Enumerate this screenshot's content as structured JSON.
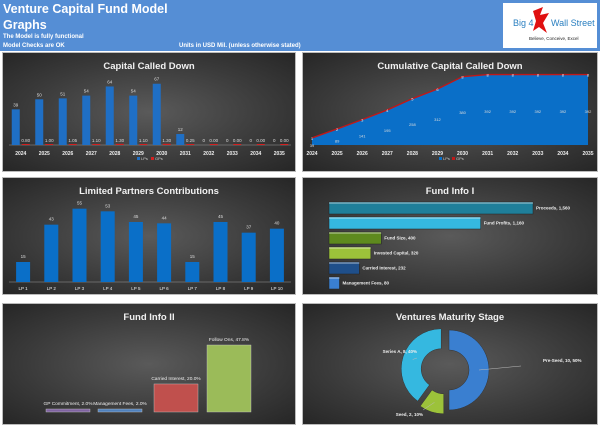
{
  "header": {
    "title": "Venture Capital Fund Model",
    "subtitle": "Graphs",
    "status_1": "The Model is fully functional",
    "status_2": "Model Checks are OK",
    "units": "Units in USD Mil. (unless otherwise stated)",
    "logo": {
      "left": "Big 4",
      "right": "Wall Street",
      "tagline": "Believe, Conceive, Excel",
      "icon": "red-eagle-icon"
    }
  },
  "colors": {
    "header": "#558ed5",
    "lp_blue": "#1f6fc5",
    "gp_red": "#d42020"
  },
  "chart_data": [
    {
      "type": "bar",
      "title": "Capital Called Down",
      "categories": [
        "2024",
        "2025",
        "2026",
        "2027",
        "2028",
        "2029",
        "2030",
        "2031",
        "2032",
        "2033",
        "2034",
        "2035"
      ],
      "series": [
        {
          "name": "LPs",
          "values": [
            39,
            50,
            51,
            54,
            64,
            54,
            67,
            12,
            0,
            0,
            0,
            0
          ],
          "labels": [
            "39",
            "50",
            "51",
            "54",
            "64",
            "54",
            "67",
            "12",
            "0",
            "0",
            "0",
            "0"
          ]
        },
        {
          "name": "GPs",
          "values": [
            0.8,
            1.0,
            1.05,
            1.1,
            1.3,
            1.1,
            1.3,
            0.25,
            0,
            0,
            0,
            0
          ],
          "labels": [
            "0.80",
            "1.00",
            "1.05",
            "1.10",
            "1.30",
            "1.10",
            "1.30",
            "0.25",
            "0.00",
            "0.00",
            "0.00",
            "0.00"
          ]
        }
      ],
      "legend": "bottom",
      "ylim": [
        0,
        70
      ]
    },
    {
      "type": "area",
      "title": "Cumulative Capital Called Down",
      "categories": [
        "2024",
        "2025",
        "2026",
        "2027",
        "2028",
        "2029",
        "2030",
        "2031",
        "2032",
        "2033",
        "2034",
        "2035"
      ],
      "series": [
        {
          "name": "LPs",
          "values": [
            39,
            89,
            141,
            195,
            258,
            312,
            380,
            392,
            392,
            392,
            392,
            392
          ]
        },
        {
          "name": "GPs",
          "values": [
            1,
            2,
            3,
            4,
            5,
            6,
            8,
            8,
            8,
            8,
            8,
            8
          ]
        }
      ],
      "stacked": true,
      "legend": "bottom",
      "ylim": [
        0,
        420
      ]
    },
    {
      "type": "bar",
      "title": "Limited Partners Contributions",
      "categories": [
        "LP 1",
        "LP 2",
        "LP 3",
        "LP 4",
        "LP 5",
        "LP 6",
        "LP 7",
        "LP 8",
        "LP 9",
        "LP 10"
      ],
      "values": [
        15,
        43,
        55,
        53,
        45,
        44,
        15,
        45,
        37,
        40
      ],
      "ylim": [
        0,
        60
      ]
    },
    {
      "type": "bar",
      "orientation": "horizontal",
      "title": "Fund Info I",
      "categories": [
        "Proceeds",
        "Fund Profits",
        "Fund Size",
        "Invested Capital",
        "Carried Interest",
        "Management Fees"
      ],
      "values": [
        1560,
        1160,
        400,
        320,
        232,
        80
      ],
      "labels": [
        "Proceeds, 1,560",
        "Fund Profits, 1,160",
        "Fund Size, 400",
        "Invested Capital, 320",
        "Carried Interest, 232",
        "Management Fees, 80"
      ],
      "colors": [
        "#1f7f9a",
        "#35b8e0",
        "#5e8a1e",
        "#9cc23a",
        "#1f4f8a",
        "#3a7fd0"
      ]
    },
    {
      "type": "bar",
      "title": "Fund Info II",
      "categories": [
        "GP Commitment",
        "Management Fees",
        "Carried Interest",
        "Follow Ons"
      ],
      "values": [
        2.0,
        2.0,
        20.0,
        47.8
      ],
      "labels": [
        "GP Commitment, 2.0%",
        "Management Fees, 2.0%",
        "Carried Interest, 20.0%",
        "Follow Ons, 47.8%"
      ],
      "colors": [
        "#8064a2",
        "#4f81bd",
        "#c0504d",
        "#9bbb59"
      ]
    },
    {
      "type": "pie",
      "donut": true,
      "title": "Ventures Maturity Stage",
      "categories": [
        "Pre-Seed",
        "Seed",
        "Series A"
      ],
      "values": [
        10,
        2,
        8
      ],
      "percents": [
        50,
        10,
        40
      ],
      "labels": [
        "Pre-Seed, 10, 50%",
        "Seed, 2, 10%",
        "Series A, 8, 40%"
      ],
      "colors": [
        "#3a7fd0",
        "#9cc23a",
        "#35b8e0"
      ]
    }
  ]
}
